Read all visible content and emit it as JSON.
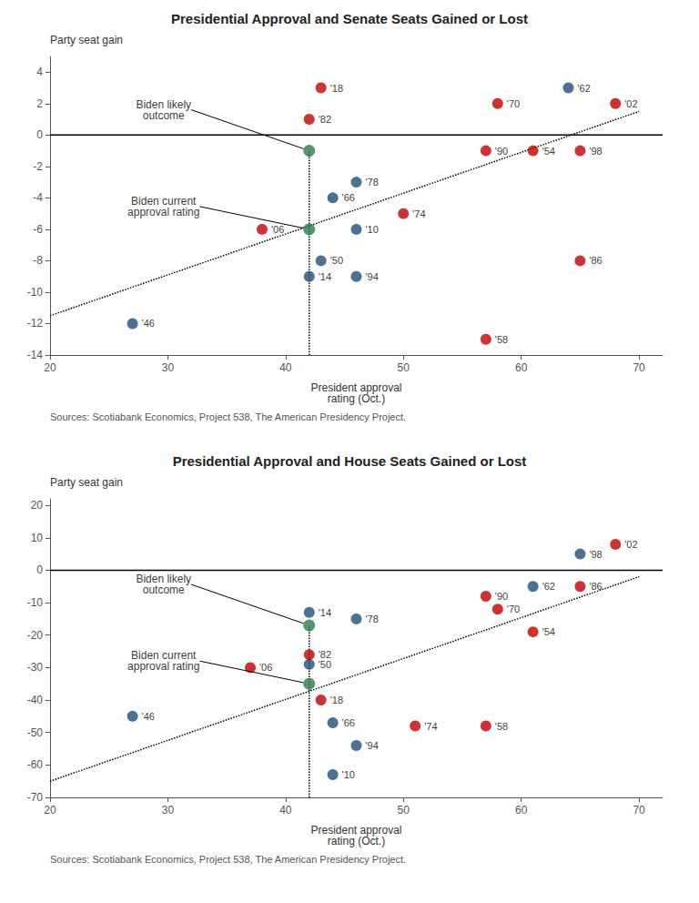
{
  "chart_data": [
    {
      "type": "scatter",
      "title": "Presidential Approval and Senate Seats Gained or Lost",
      "xlabel": "President approval\nrating (Oct.)",
      "ylabel": "Party seat gain",
      "xlim": [
        20,
        72
      ],
      "ylim": [
        -14,
        5
      ],
      "xticks": [
        20,
        30,
        40,
        50,
        60,
        70
      ],
      "yticks": [
        -14,
        -12,
        -10,
        -8,
        -6,
        -4,
        -2,
        0,
        2,
        4
      ],
      "grid": false,
      "series": [
        {
          "type": "scatter",
          "x": [
            27,
            43,
            61,
            57,
            64,
            44,
            58,
            50,
            46,
            42,
            65,
            57,
            46,
            65,
            68,
            38,
            46,
            42,
            43
          ],
          "values": [
            -12,
            -8,
            -1,
            -13,
            3,
            -4,
            2,
            -5,
            -3,
            1,
            -8,
            -1,
            -9,
            -1,
            2,
            -6,
            -6,
            -9,
            3
          ],
          "colors": [
            "#1f4e79",
            "#1f4e79",
            "#c00000",
            "#c00000",
            "#1f4e79",
            "#1f4e79",
            "#c00000",
            "#c00000",
            "#1f4e79",
            "#c00000",
            "#c00000",
            "#c00000",
            "#1f4e79",
            "#c00000",
            "#c00000",
            "#c00000",
            "#1f4e79",
            "#1f4e79",
            "#c00000"
          ],
          "labels": [
            "'46",
            "'50",
            "'54",
            "'58",
            "'62",
            "'66",
            "'70",
            "'74",
            "'78",
            "'82",
            "'86",
            "'90",
            "'94",
            "'98",
            "'02",
            "'06",
            "'10",
            "'14",
            "'18"
          ]
        },
        {
          "type": "scatter",
          "x": [
            42,
            42
          ],
          "values": [
            -1,
            -6
          ],
          "color": "#2d7a4f",
          "labels": [
            "Biden likely\noutcome",
            "Biden current\napproval rating"
          ]
        },
        {
          "type": "line",
          "x": [
            20,
            70
          ],
          "values": [
            -11.5,
            1.5
          ],
          "color": "#000000",
          "line_style": "dotted"
        },
        {
          "type": "line",
          "x": [
            42,
            42
          ],
          "values": [
            -14,
            -1
          ],
          "color": "#000000",
          "line_style": "dotted"
        },
        {
          "type": "line",
          "x": [
            20,
            72
          ],
          "values": [
            0,
            0
          ],
          "color": "#000000",
          "line_style": "solid"
        }
      ],
      "source": "Sources: Scotiabank Economics, Project 538, The American Presidency Project."
    },
    {
      "type": "scatter",
      "title": "Presidential Approval and House Seats Gained or Lost",
      "xlabel": "President approval\nrating (Oct.)",
      "ylabel": "Party seat gain",
      "xlim": [
        20,
        72
      ],
      "ylim": [
        -70,
        22
      ],
      "xticks": [
        20,
        30,
        40,
        50,
        60,
        70
      ],
      "yticks": [
        -70,
        -60,
        -50,
        -40,
        -30,
        -20,
        -10,
        0,
        10,
        20
      ],
      "grid": false,
      "series": [
        {
          "type": "scatter",
          "x": [
            27,
            42,
            61,
            57,
            61,
            44,
            58,
            51,
            46,
            42,
            65,
            57,
            46,
            65,
            68,
            37,
            44,
            42,
            43
          ],
          "values": [
            -45,
            -29,
            -19,
            -48,
            -5,
            -47,
            -12,
            -48,
            -15,
            -26,
            -5,
            -8,
            -54,
            5,
            8,
            -30,
            -63,
            -13,
            -40
          ],
          "colors": [
            "#1f4e79",
            "#1f4e79",
            "#c00000",
            "#c00000",
            "#1f4e79",
            "#1f4e79",
            "#c00000",
            "#c00000",
            "#1f4e79",
            "#c00000",
            "#c00000",
            "#c00000",
            "#1f4e79",
            "#1f4e79",
            "#c00000",
            "#c00000",
            "#1f4e79",
            "#1f4e79",
            "#c00000"
          ],
          "labels": [
            "'46",
            "'50",
            "'54",
            "'58",
            "'62",
            "'66",
            "'70",
            "'74",
            "'78",
            "'82",
            "'86",
            "'90",
            "'94",
            "'98",
            "'02",
            "'06",
            "'10",
            "'14",
            "'18"
          ]
        },
        {
          "type": "scatter",
          "x": [
            42,
            42
          ],
          "values": [
            -17,
            -35
          ],
          "color": "#2d7a4f",
          "labels": [
            "Biden likely\noutcome",
            "Biden current\napproval rating"
          ]
        },
        {
          "type": "line",
          "x": [
            20,
            70
          ],
          "values": [
            -65,
            -2
          ],
          "color": "#000000",
          "line_style": "dotted"
        },
        {
          "type": "line",
          "x": [
            42,
            42
          ],
          "values": [
            -70,
            -17
          ],
          "color": "#000000",
          "line_style": "dotted"
        },
        {
          "type": "line",
          "x": [
            20,
            72
          ],
          "values": [
            0,
            0
          ],
          "color": "#000000",
          "line_style": "solid"
        }
      ],
      "source": "Sources: Scotiabank Economics, Project 538, The American Presidency Project."
    }
  ]
}
